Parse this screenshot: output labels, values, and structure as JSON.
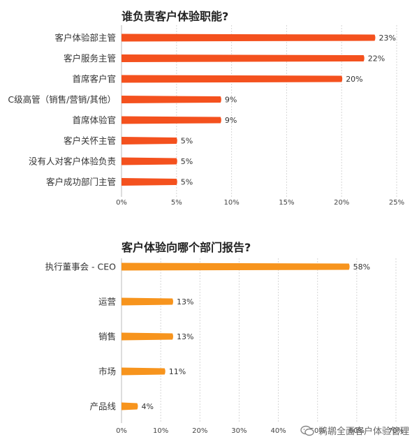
{
  "chart_data": [
    {
      "type": "bar",
      "orientation": "horizontal",
      "title": "谁负责客户体验职能?",
      "categories": [
        "客户体验部主管",
        "客户服务主管",
        "首席客户官",
        "C级高管（销售/营销/其他）",
        "首席体验官",
        "客户关怀主管",
        "没有人对客户体验负责",
        "客户成功部门主管"
      ],
      "values": [
        23,
        22,
        20,
        9,
        9,
        5,
        5,
        5
      ],
      "value_labels": [
        "23%",
        "22%",
        "20%",
        "9%",
        "9%",
        "5%",
        "5%",
        "5%"
      ],
      "xlim": [
        0,
        25
      ],
      "xticks": [
        "0%",
        "5%",
        "10%",
        "15%",
        "20%",
        "25%"
      ],
      "grid": true,
      "color": "#f4511e"
    },
    {
      "type": "bar",
      "orientation": "horizontal",
      "title": "客户体验向哪个部门报告?",
      "categories": [
        "执行董事会 - CEO",
        "运营",
        "销售",
        "市场",
        "产品线"
      ],
      "values": [
        58,
        13,
        13,
        11,
        4
      ],
      "value_labels": [
        "58%",
        "13%",
        "13%",
        "11%",
        "4%"
      ],
      "xlim": [
        0,
        70
      ],
      "xticks": [
        "0%",
        "10%",
        "20%",
        "30%",
        "40%",
        "50%",
        "60%",
        "70%"
      ],
      "grid": true,
      "color": "#f7941d"
    }
  ],
  "watermark": {
    "text": "鹈鹕全面客户体验管理",
    "icon": "wechat-icon"
  }
}
